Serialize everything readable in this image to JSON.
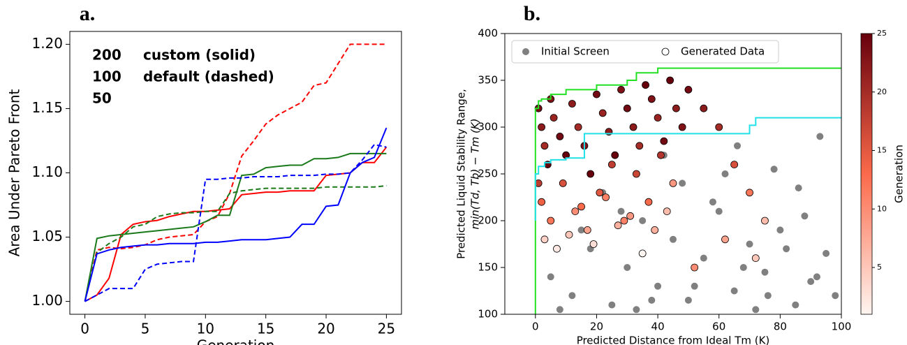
{
  "chart_data": [
    {
      "type": "line",
      "title": "a.",
      "x_label": "Generation",
      "y_label": "Area Under Pareto Front",
      "x": [
        0,
        1,
        2,
        3,
        4,
        5,
        6,
        7,
        8,
        9,
        10,
        11,
        12,
        13,
        14,
        15,
        16,
        17,
        18,
        19,
        20,
        21,
        22,
        23,
        24,
        25
      ],
      "xlim": [
        -1.25,
        26.25
      ],
      "xticks": [
        0,
        5,
        10,
        15,
        20,
        25
      ],
      "ylim": [
        0.99,
        1.21
      ],
      "yticks": [
        {
          "value": 1.0,
          "label": "1.00"
        },
        {
          "value": 1.05,
          "label": "1.05"
        },
        {
          "value": 1.1,
          "label": "1.10"
        },
        {
          "value": 1.15,
          "label": "1.15"
        },
        {
          "value": 1.2,
          "label": "1.20"
        }
      ],
      "legend": [
        {
          "label": "200",
          "color": "#ff0000"
        },
        {
          "label": "100",
          "color": "#1a7a1a"
        },
        {
          "label": "50",
          "color": "#0000ff"
        }
      ],
      "annotations": [
        "custom (solid)",
        "default (dashed)"
      ],
      "series": [
        {
          "color": "#ff0000",
          "dashed": false,
          "values": [
            1.0,
            1.005,
            1.018,
            1.052,
            1.06,
            1.062,
            1.063,
            1.066,
            1.068,
            1.07,
            1.07,
            1.071,
            1.072,
            1.083,
            1.084,
            1.085,
            1.085,
            1.086,
            1.086,
            1.086,
            1.098,
            1.099,
            1.1,
            1.108,
            1.108,
            1.12
          ]
        },
        {
          "color": "#ff0000",
          "dashed": true,
          "values": [
            1.0,
            1.04,
            1.042,
            1.041,
            1.042,
            1.044,
            1.048,
            1.05,
            1.051,
            1.052,
            1.062,
            1.066,
            1.084,
            1.113,
            1.125,
            1.138,
            1.145,
            1.15,
            1.155,
            1.168,
            1.17,
            1.185,
            1.2,
            1.2,
            1.2,
            1.2
          ]
        },
        {
          "color": "#1a7a1a",
          "dashed": false,
          "values": [
            1.0,
            1.049,
            1.051,
            1.052,
            1.053,
            1.054,
            1.055,
            1.056,
            1.057,
            1.058,
            1.062,
            1.067,
            1.067,
            1.098,
            1.099,
            1.104,
            1.105,
            1.106,
            1.106,
            1.111,
            1.111,
            1.112,
            1.115,
            1.115,
            1.115,
            1.115
          ]
        },
        {
          "color": "#1a7a1a",
          "dashed": true,
          "values": [
            1.0,
            1.038,
            1.045,
            1.05,
            1.058,
            1.06,
            1.066,
            1.068,
            1.069,
            1.069,
            1.07,
            1.07,
            1.084,
            1.086,
            1.087,
            1.088,
            1.088,
            1.088,
            1.088,
            1.088,
            1.089,
            1.089,
            1.089,
            1.089,
            1.089,
            1.09
          ]
        },
        {
          "color": "#0000ff",
          "dashed": false,
          "values": [
            1.0,
            1.037,
            1.04,
            1.042,
            1.043,
            1.044,
            1.044,
            1.045,
            1.045,
            1.045,
            1.046,
            1.046,
            1.047,
            1.048,
            1.048,
            1.048,
            1.049,
            1.05,
            1.06,
            1.06,
            1.074,
            1.075,
            1.1,
            1.108,
            1.112,
            1.135
          ]
        },
        {
          "color": "#0000ff",
          "dashed": true,
          "values": [
            1.0,
            1.005,
            1.01,
            1.01,
            1.01,
            1.025,
            1.029,
            1.03,
            1.031,
            1.031,
            1.095,
            1.095,
            1.096,
            1.096,
            1.097,
            1.097,
            1.097,
            1.098,
            1.098,
            1.098,
            1.099,
            1.099,
            1.1,
            1.11,
            1.122,
            1.12
          ]
        }
      ]
    },
    {
      "type": "scatter",
      "title": "b.",
      "x_label": "Predicted Distance from Ideal Tm (K)",
      "y_label": [
        "Predicted Liquid Stability Range,",
        "min(Td, Tb) − Tm (K)"
      ],
      "xlim": [
        -10,
        100
      ],
      "xticks": [
        0,
        20,
        40,
        60,
        80,
        100
      ],
      "ylim": [
        100,
        400
      ],
      "yticks": [
        100,
        150,
        200,
        250,
        300,
        350,
        400
      ],
      "colorbar": {
        "label": "Generation",
        "clim": [
          1,
          25
        ],
        "ticks": [
          5,
          10,
          15,
          20,
          25
        ]
      },
      "series": [
        {
          "name": "Initial Screen",
          "color": "#808080",
          "x": [
            5,
            12,
            18,
            25,
            30,
            35,
            40,
            45,
            50,
            55,
            60,
            65,
            70,
            75,
            80,
            85,
            90,
            95,
            98,
            22,
            33,
            48,
            58,
            68,
            78,
            88,
            93,
            15,
            42,
            52,
            62,
            72,
            82,
            92,
            38,
            28,
            8,
            66,
            76,
            86
          ],
          "y": [
            140,
            120,
            170,
            110,
            150,
            200,
            130,
            180,
            115,
            160,
            210,
            125,
            175,
            145,
            190,
            110,
            135,
            165,
            120,
            230,
            105,
            240,
            220,
            150,
            255,
            205,
            290,
            190,
            270,
            130,
            250,
            105,
            170,
            140,
            115,
            210,
            105,
            280,
            120,
            235
          ]
        },
        {
          "name": "Generated Data",
          "color": "#ffffff",
          "x": [
            1,
            2,
            3,
            4,
            5,
            6,
            8,
            10,
            12,
            14,
            16,
            18,
            20,
            22,
            24,
            26,
            28,
            30,
            32,
            34,
            36,
            38,
            40,
            42,
            44,
            46,
            48,
            50,
            2,
            5,
            9,
            13,
            17,
            21,
            25,
            29,
            33,
            37,
            41,
            45,
            55,
            60,
            65,
            70,
            75,
            3,
            7,
            11,
            19,
            27,
            35,
            43,
            52,
            62,
            72,
            1,
            15,
            23,
            31,
            39
          ],
          "y": [
            320,
            300,
            280,
            260,
            330,
            310,
            290,
            270,
            325,
            300,
            280,
            250,
            335,
            315,
            295,
            270,
            340,
            320,
            300,
            280,
            345,
            330,
            310,
            285,
            350,
            320,
            300,
            340,
            220,
            200,
            240,
            210,
            190,
            230,
            260,
            200,
            250,
            220,
            270,
            240,
            320,
            300,
            260,
            230,
            200,
            180,
            170,
            185,
            175,
            195,
            165,
            210,
            150,
            180,
            160,
            240,
            215,
            225,
            205,
            190
          ],
          "c": [
            24,
            22,
            20,
            25,
            23,
            21,
            24,
            25,
            22,
            20,
            23,
            25,
            24,
            21,
            22,
            25,
            23,
            24,
            22,
            20,
            25,
            23,
            21,
            24,
            25,
            22,
            23,
            24,
            14,
            12,
            16,
            10,
            8,
            15,
            18,
            11,
            17,
            13,
            19,
            9,
            22,
            20,
            16,
            12,
            6,
            4,
            2,
            5,
            3,
            7,
            1,
            6,
            10,
            8,
            5,
            18,
            13,
            11,
            9,
            7
          ]
        }
      ],
      "step_lines": [
        {
          "color": "#22e022",
          "x": [
            0,
            0,
            1,
            1,
            2,
            2,
            5,
            5,
            10,
            10,
            20,
            20,
            30,
            30,
            33,
            33,
            40,
            40,
            100
          ],
          "y": [
            100,
            320,
            320,
            328,
            328,
            330,
            330,
            335,
            335,
            340,
            340,
            345,
            345,
            350,
            350,
            358,
            358,
            363,
            363
          ]
        },
        {
          "color": "#20e0e8",
          "x": [
            0,
            0,
            1,
            1,
            3,
            3,
            5,
            5,
            10,
            10,
            16,
            16,
            70,
            70,
            72,
            72,
            100
          ],
          "y": [
            200,
            250,
            250,
            258,
            258,
            262,
            262,
            265,
            265,
            267,
            267,
            293,
            293,
            302,
            302,
            310,
            310
          ]
        }
      ]
    }
  ]
}
